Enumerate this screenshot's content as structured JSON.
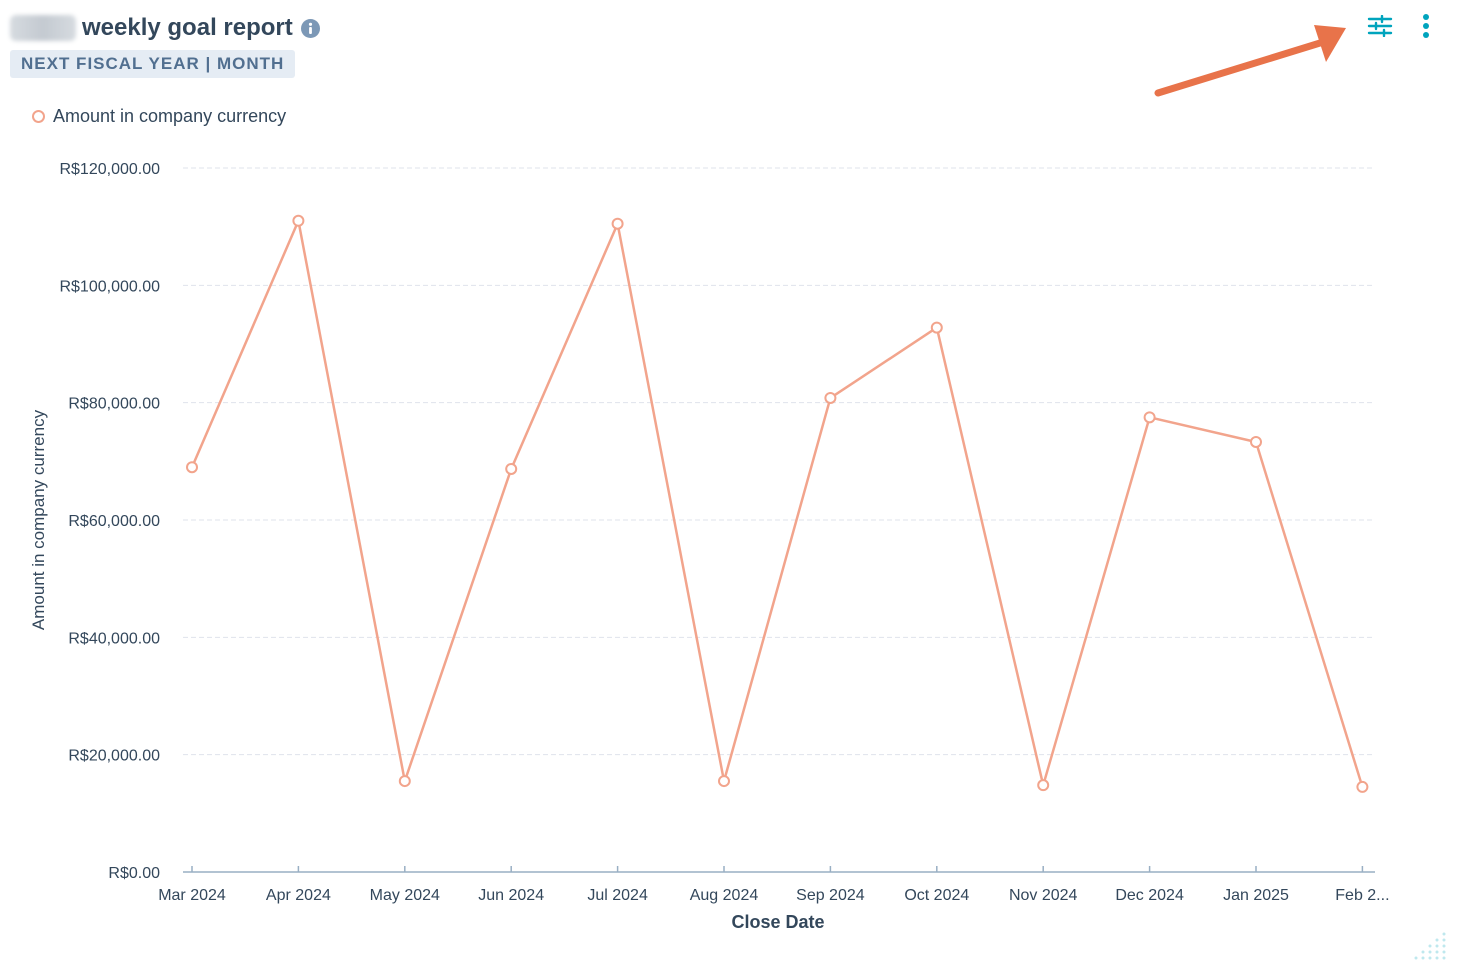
{
  "header": {
    "title": "weekly goal report",
    "period": "NEXT FISCAL YEAR | MONTH",
    "info_icon": "info-circle-icon"
  },
  "toolbar": {
    "filter_icon": "sliders-icon",
    "more_icon": "vertical-dots-icon"
  },
  "colors": {
    "series": "#f2a48c",
    "grid": "#dfe3eb",
    "axis": "#99afc4",
    "text": "#33475b",
    "accent": "#00a4bd",
    "annotation_arrow": "#e8734a"
  },
  "chart_data": {
    "type": "line",
    "x": [
      "Mar 2024",
      "Apr 2024",
      "May 2024",
      "Jun 2024",
      "Jul 2024",
      "Aug 2024",
      "Sep 2024",
      "Oct 2024",
      "Nov 2024",
      "Dec 2024",
      "Jan 2025",
      "Feb 2..."
    ],
    "series": [
      {
        "name": "Amount in company currency",
        "values": [
          69000,
          111000,
          15500,
          68700,
          110500,
          15500,
          80800,
          92800,
          14800,
          77500,
          73300,
          14500
        ]
      }
    ],
    "xlabel": "Close Date",
    "ylabel": "Amount in company currency",
    "ylim": [
      0,
      120000
    ],
    "yticks": [
      0,
      20000,
      40000,
      60000,
      80000,
      100000,
      120000
    ],
    "ytick_labels": [
      "R$0.00",
      "R$20,000.00",
      "R$40,000.00",
      "R$60,000.00",
      "R$80,000.00",
      "R$100,000.00",
      "R$120,000.00"
    ],
    "grid": true,
    "legend_position": "top-left"
  }
}
